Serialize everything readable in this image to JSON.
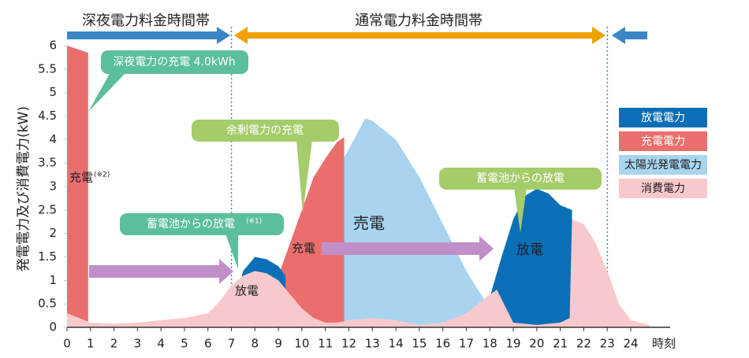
{
  "chart_data": {
    "type": "area",
    "y_axis_label": "発電電力及び消費電力(kW)",
    "x_axis_label": "時刻",
    "xlim": [
      0,
      24
    ],
    "xticks": [
      0,
      1,
      2,
      3,
      4,
      5,
      6,
      7,
      8,
      9,
      10,
      11,
      12,
      13,
      14,
      15,
      16,
      17,
      18,
      19,
      20,
      21,
      22,
      23,
      24
    ],
    "ylim": [
      0,
      6
    ],
    "yticks": [
      0,
      0.5,
      1,
      1.5,
      2,
      2.5,
      3,
      3.5,
      4,
      4.5,
      5,
      5.5,
      6
    ],
    "legend_position": "right",
    "series": [
      {
        "name": "太陽光発電電力",
        "color": "#a8d4f0",
        "x": [
          6.5,
          7,
          8,
          9,
          10,
          11,
          12,
          12.7,
          13,
          14,
          15,
          16,
          17,
          18,
          18.5
        ],
        "values": [
          0,
          0.1,
          0.4,
          0.9,
          1.8,
          2.9,
          3.8,
          4.45,
          4.4,
          4.0,
          3.2,
          2.2,
          1.2,
          0.4,
          0
        ]
      },
      {
        "name": "充電電力",
        "color": "#eb6e6e",
        "x": [
          0,
          0.9,
          5,
          9,
          9.5,
          10,
          10.5,
          11,
          11.5,
          11.8
        ],
        "values": [
          6,
          5.85,
          null,
          1.1,
          1.8,
          2.5,
          3.2,
          3.6,
          3.95,
          4.05
        ]
      },
      {
        "name": "放電電力",
        "color": "#0b6fb8",
        "x": [
          7,
          7.5,
          8,
          8.5,
          9,
          9.3,
          13,
          17.8,
          18.5,
          19,
          19.5,
          20,
          20.5,
          21,
          21.5
        ],
        "values": [
          0.3,
          1.2,
          1.5,
          1.45,
          1.3,
          1.1,
          null,
          0.3,
          1.5,
          2.3,
          2.8,
          2.95,
          2.85,
          2.6,
          2.5
        ]
      },
      {
        "name": "消費電力",
        "color": "#f8c9cc",
        "x": [
          0,
          1,
          2,
          3,
          4,
          5,
          6,
          6.5,
          7,
          7.5,
          8,
          8.5,
          9,
          9.5,
          10,
          10.5,
          11,
          11.5,
          12,
          13,
          14,
          15,
          16,
          17,
          17.5,
          18,
          18.3,
          19,
          20,
          21,
          21.4,
          21.5,
          22,
          22.5,
          23,
          23.5,
          24,
          24.8
        ],
        "values": [
          0.3,
          0.1,
          0.08,
          0.1,
          0.15,
          0.2,
          0.3,
          0.55,
          0.9,
          1.1,
          1.2,
          1.15,
          1.0,
          0.7,
          0.4,
          0.2,
          0.1,
          0.1,
          0.15,
          0.2,
          0.15,
          0.05,
          0.1,
          0.3,
          0.5,
          0.7,
          0.8,
          0.1,
          0.05,
          0.1,
          0.2,
          2.3,
          2.2,
          1.8,
          1.2,
          0.5,
          0.15,
          0.05
        ]
      }
    ],
    "periods": [
      "深夜電力料金時間帯",
      "通常電力料金時間帯"
    ],
    "callouts": [
      "深夜電力の充電 4.0kWh",
      "余剰電力の充電",
      "蓄電池からの放電",
      "蓄電池からの放電",
      "(※1)"
    ],
    "region_labels": [
      "充電",
      "(※2)",
      "放電",
      "充電",
      "売電",
      "放電"
    ]
  }
}
